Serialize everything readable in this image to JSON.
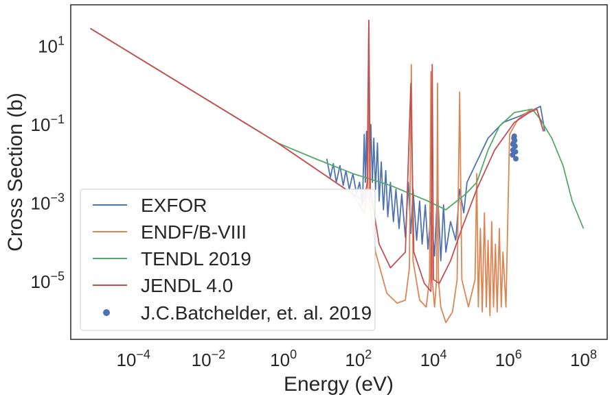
{
  "chart_data": {
    "type": "line",
    "title": "",
    "xlabel": "Energy (eV)",
    "ylabel": "Cross Section (b)",
    "xscale": "log",
    "yscale": "log",
    "xlim": [
      3e-06,
      600000000.0
    ],
    "ylim": [
      3e-07,
      100
    ],
    "grid": false,
    "legend_position": "lower-left",
    "x_tick_exponents": [
      -4,
      -2,
      0,
      2,
      4,
      6,
      8
    ],
    "y_tick_exponents": [
      -5,
      -3,
      -1,
      1
    ],
    "series": [
      {
        "name": "EXFOR",
        "color": "#4c72b0",
        "kind": "line",
        "points": [
          [
            20,
            0.012
          ],
          [
            25,
            0.004
          ],
          [
            30,
            0.009
          ],
          [
            36,
            0.003
          ],
          [
            45,
            0.008
          ],
          [
            55,
            0.0025
          ],
          [
            65,
            0.006
          ],
          [
            80,
            0.002
          ],
          [
            100,
            0.005
          ],
          [
            125,
            0.0015
          ],
          [
            150,
            0.003
          ],
          [
            180,
            0.0008
          ],
          [
            200,
            0.05
          ],
          [
            215,
            0.003
          ],
          [
            230,
            0.06
          ],
          [
            245,
            0.004
          ],
          [
            260,
            2.0
          ],
          [
            280,
            0.005
          ],
          [
            300,
            0.09
          ],
          [
            330,
            0.003
          ],
          [
            360,
            0.04
          ],
          [
            400,
            0.002
          ],
          [
            450,
            0.03
          ],
          [
            500,
            0.001
          ],
          [
            570,
            0.01
          ],
          [
            650,
            0.0006
          ],
          [
            750,
            0.006
          ],
          [
            850,
            0.0004
          ],
          [
            1000,
            0.003
          ],
          [
            1200,
            0.0003
          ],
          [
            1400,
            0.002
          ],
          [
            1700,
            0.0002
          ],
          [
            2000,
            0.0015
          ],
          [
            2500,
            0.00012
          ],
          [
            3000,
            0.003
          ],
          [
            3500,
            0.00015
          ],
          [
            4000,
            0.002
          ],
          [
            5000,
            0.0001
          ],
          [
            6000,
            0.001
          ],
          [
            7000,
            8e-05
          ],
          [
            8500,
            0.0008
          ],
          [
            10000,
            6e-05
          ],
          [
            12000,
            0.0005
          ],
          [
            15000,
            4e-05
          ],
          [
            18000,
            0.002
          ],
          [
            22000,
            3e-05
          ],
          [
            26000,
            0.0008
          ],
          [
            30000,
            5e-05
          ],
          [
            40000,
            0.0003
          ],
          [
            55000,
            0.0001
          ],
          [
            70000,
            0.002
          ],
          [
            90000,
            0.0005
          ],
          [
            110000,
            0.003
          ],
          [
            200000,
            0.01
          ],
          [
            400000,
            0.04
          ],
          [
            1000000,
            0.1
          ],
          [
            3000000,
            0.15
          ],
          [
            10000000,
            0.26
          ],
          [
            13000000,
            0.06
          ]
        ]
      },
      {
        "name": "ENDF/B-VIII",
        "color": "#dd8452",
        "kind": "line",
        "points": [
          [
            1e-05,
            25
          ],
          [
            1,
            0.03
          ],
          [
            100,
            0.0015
          ],
          [
            200,
            0.0005
          ],
          [
            250,
            0.002
          ],
          [
            265,
            40
          ],
          [
            280,
            0.001
          ],
          [
            400,
            5e-05
          ],
          [
            800,
            4.5e-06
          ],
          [
            1500,
            2.5e-06
          ],
          [
            2500,
            3e-06
          ],
          [
            3200,
            2e-05
          ],
          [
            3600,
            3.0
          ],
          [
            4000,
            3e-05
          ],
          [
            6000,
            3e-06
          ],
          [
            9000,
            2e-06
          ],
          [
            11000,
            1e-05
          ],
          [
            12000,
            2.0
          ],
          [
            13000,
            1e-05
          ],
          [
            15000,
            2e-06
          ],
          [
            17000,
            1e-05
          ],
          [
            18000,
            1.0
          ],
          [
            19000,
            1e-05
          ],
          [
            22000,
            2e-06
          ],
          [
            30000,
            8e-07
          ],
          [
            45000,
            1.5e-06
          ],
          [
            60000,
            1e-05
          ],
          [
            70000,
            0.6
          ],
          [
            80000,
            1e-05
          ],
          [
            120000,
            2e-06
          ],
          [
            180000,
            1e-05
          ],
          [
            200000,
            0.005
          ],
          [
            220000,
            2e-06
          ],
          [
            250000,
            0.0002
          ],
          [
            280000,
            1.5e-06
          ],
          [
            320000,
            0.0005
          ],
          [
            360000,
            2e-06
          ],
          [
            400000,
            0.0001
          ],
          [
            450000,
            1.2e-06
          ],
          [
            500000,
            0.0003
          ],
          [
            560000,
            2e-06
          ],
          [
            630000,
            8e-05
          ],
          [
            700000,
            1.5e-06
          ],
          [
            800000,
            0.0002
          ],
          [
            900000,
            2e-06
          ],
          [
            1000000,
            5e-05
          ],
          [
            1200000,
            2e-06
          ],
          [
            1500000,
            0.05
          ],
          [
            2500000,
            0.12
          ],
          [
            5000000,
            0.2
          ],
          [
            8000000,
            0.22
          ],
          [
            12000000,
            0.06
          ]
        ]
      },
      {
        "name": "TENDL 2019",
        "color": "#55a868",
        "kind": "line",
        "points": [
          [
            1e-05,
            25
          ],
          [
            1,
            0.03
          ],
          [
            10,
            0.012
          ],
          [
            100,
            0.005
          ],
          [
            1000,
            0.0025
          ],
          [
            10000,
            0.001
          ],
          [
            30000,
            0.0006
          ],
          [
            100000,
            0.0015
          ],
          [
            200000,
            0.003
          ],
          [
            400000,
            0.02
          ],
          [
            800000,
            0.08
          ],
          [
            2000000,
            0.18
          ],
          [
            6000000,
            0.22
          ],
          [
            10000000,
            0.12
          ],
          [
            20000000,
            0.04
          ],
          [
            40000000,
            0.008
          ],
          [
            70000000,
            0.001
          ],
          [
            140000000,
            0.0002
          ]
        ]
      },
      {
        "name": "JENDL 4.0",
        "color": "#c44e52",
        "kind": "line",
        "points": [
          [
            1e-05,
            25
          ],
          [
            1,
            0.03
          ],
          [
            100,
            0.0015
          ],
          [
            200,
            0.001
          ],
          [
            240,
            0.003
          ],
          [
            265,
            40
          ],
          [
            290,
            0.002
          ],
          [
            500,
            8e-05
          ],
          [
            1000,
            2e-05
          ],
          [
            2500,
            5e-05
          ],
          [
            3500,
            1.0
          ],
          [
            4200,
            5e-05
          ],
          [
            8000,
            8e-06
          ],
          [
            12000,
            5e-06
          ],
          [
            13000,
            3.0
          ],
          [
            14000,
            1e-05
          ],
          [
            20000,
            8e-06
          ],
          [
            40000,
            3e-05
          ],
          [
            80000,
            0.0002
          ],
          [
            200000,
            0.002
          ],
          [
            600000,
            0.02
          ],
          [
            2000000,
            0.1
          ],
          [
            5000000,
            0.18
          ],
          [
            8000000,
            0.22
          ],
          [
            12000000,
            0.06
          ]
        ]
      },
      {
        "name": "J.C.Batchelder, et. al. 2019",
        "color": "#4c72b0",
        "kind": "scatter",
        "points": [
          [
            1800000,
            0.015
          ],
          [
            1850000,
            0.02
          ],
          [
            1900000,
            0.03
          ],
          [
            1950000,
            0.04
          ],
          [
            2000000,
            0.045
          ],
          [
            2050000,
            0.035
          ],
          [
            2100000,
            0.025
          ],
          [
            2150000,
            0.018
          ],
          [
            2200000,
            0.012
          ],
          [
            1850000,
            0.028
          ]
        ]
      }
    ]
  }
}
